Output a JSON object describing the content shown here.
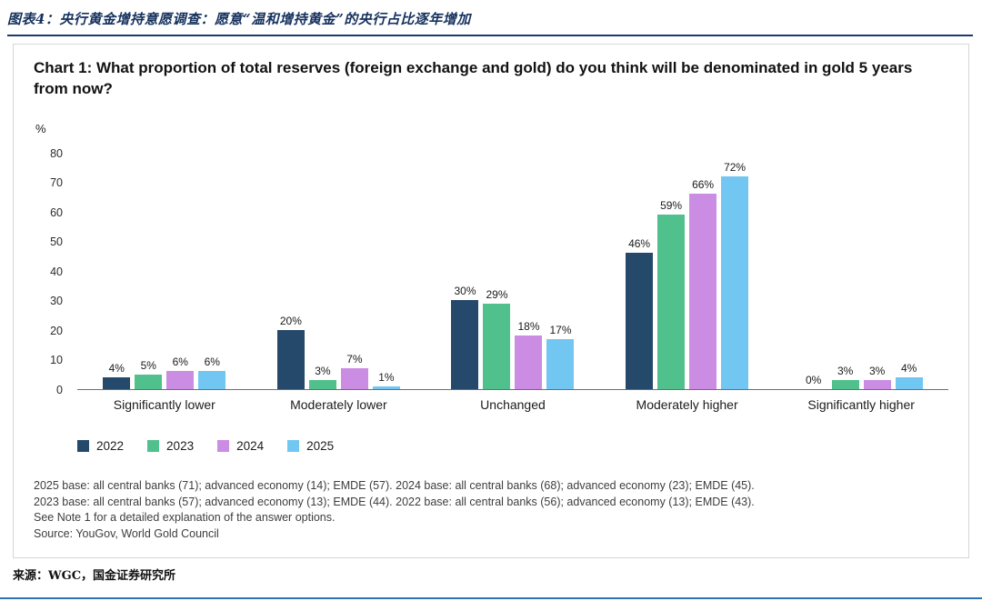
{
  "header": {
    "title": "图表4：央行黄金增持意愿调查：愿意“温和增持黄金”的央行占比逐年增加"
  },
  "chart_data": {
    "type": "bar",
    "title": "Chart 1: What proportion of total reserves (foreign exchange and gold) do you think will be denominated in gold 5 years from now?",
    "ylabel": "%",
    "ylim": [
      0,
      80
    ],
    "yticks": [
      0,
      10,
      20,
      30,
      40,
      50,
      60,
      70,
      80
    ],
    "grid": false,
    "legend_position": "bottom-left",
    "value_label_format": "{v}%",
    "categories": [
      "Significantly lower",
      "Moderately lower",
      "Unchanged",
      "Moderately higher",
      "Significantly higher"
    ],
    "series": [
      {
        "name": "2022",
        "color": "#25496b",
        "values": [
          4,
          20,
          30,
          46,
          0
        ]
      },
      {
        "name": "2023",
        "color": "#50c08d",
        "values": [
          5,
          3,
          29,
          59,
          3
        ]
      },
      {
        "name": "2024",
        "color": "#cb8ce4",
        "values": [
          6,
          7,
          18,
          66,
          3
        ]
      },
      {
        "name": "2025",
        "color": "#72c7f2",
        "values": [
          6,
          1,
          17,
          72,
          4
        ]
      }
    ]
  },
  "footnotes": {
    "lines": [
      "2025 base: all central banks (71); advanced economy (14); EMDE (57). 2024 base: all central banks (68); advanced economy (23); EMDE (45).",
      "2023 base: all central banks (57); advanced economy (13); EMDE (44). 2022 base: all central banks (56); advanced economy (13); EMDE (43).",
      "See Note 1 for a detailed explanation of the answer options.",
      "Source: YouGov, World Gold Council"
    ]
  },
  "footer": {
    "source": "来源：WGC，国金证券研究所"
  }
}
